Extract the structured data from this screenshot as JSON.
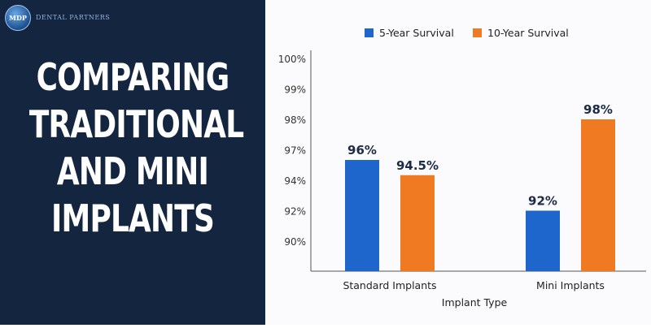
{
  "logo": {
    "badge_text": "MDP",
    "line1": "",
    "line2": "DENTAL PARTNERS"
  },
  "headline": {
    "lines": [
      "COMPARING",
      "TRADITIONAL",
      "AND MINI",
      "IMPLANTS"
    ]
  },
  "colors": {
    "panel": "#14253f",
    "series1": "#1f66cc",
    "series2": "#f07a22",
    "axis": "#333333"
  },
  "chart_data": {
    "type": "bar",
    "categories": [
      "Standard Implants",
      "Mini Implants"
    ],
    "series": [
      {
        "name": "5-Year Survival",
        "color": "#1f66cc",
        "values": [
          96,
          92
        ],
        "labels": [
          "96%",
          "92%"
        ]
      },
      {
        "name": "10-Year Survival",
        "color": "#f07a22",
        "values": [
          94.5,
          98
        ],
        "labels": [
          "94.5%",
          "98%"
        ]
      }
    ],
    "y_ticks": [
      "100%",
      "99%",
      "98%",
      "97%",
      "94%",
      "92%",
      "90%"
    ],
    "xlabel": "Implant Type",
    "ylabel": "",
    "title": "",
    "legend": "top",
    "grid": false
  }
}
